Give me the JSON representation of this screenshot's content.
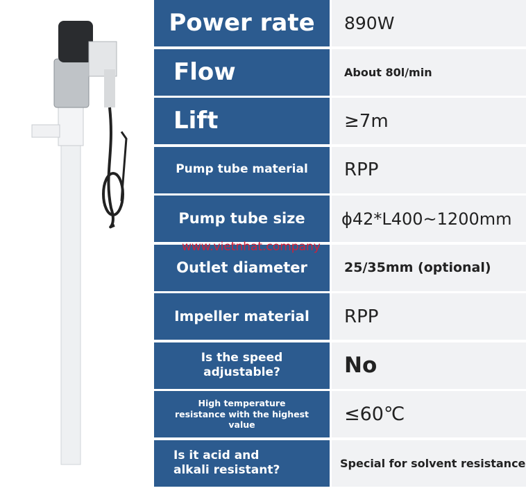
{
  "rows": [
    {
      "label": "Power rate",
      "value": "890W"
    },
    {
      "label": "Flow",
      "value": "About 80l/min"
    },
    {
      "label": "Lift",
      "value": "≥7m"
    },
    {
      "label": "Pump tube material",
      "value": "RPP"
    },
    {
      "label": "Pump tube size",
      "value": "ϕ42*L400~1200mm"
    },
    {
      "label": "Outlet diameter",
      "value": "25/35mm (optional)"
    },
    {
      "label": "Impeller material",
      "value": "RPP"
    },
    {
      "label": "Is the speed adjustable?",
      "value": "No"
    },
    {
      "label": "High temperature resistance with the highest value",
      "value": "≤60℃"
    },
    {
      "label": "Is it acid and alkali resistant?",
      "value": "Special for solvent resistance"
    }
  ],
  "watermark": "www.vietnhat.company"
}
